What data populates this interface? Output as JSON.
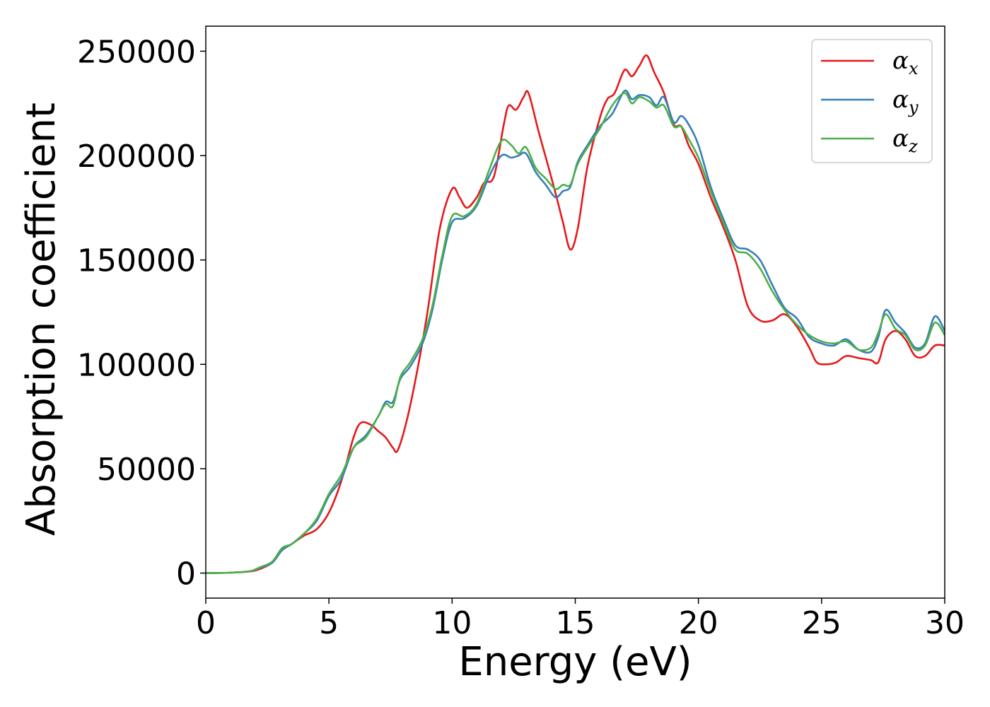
{
  "chart_data": {
    "type": "line",
    "title": "",
    "xlabel": "Energy (eV)",
    "ylabel": "Absorption coefficient",
    "xlim": [
      0,
      30
    ],
    "ylim": [
      -12000,
      262000
    ],
    "xticks": [
      0,
      5,
      10,
      15,
      20,
      25,
      30
    ],
    "xtick_labels": [
      "0",
      "5",
      "10",
      "15",
      "20",
      "25",
      "30"
    ],
    "yticks": [
      0,
      50000,
      100000,
      150000,
      200000,
      250000
    ],
    "ytick_labels": [
      "0",
      "50000",
      "100000",
      "150000",
      "200000",
      "250000"
    ],
    "grid": false,
    "legend_position": "top-right",
    "series": [
      {
        "name": "α",
        "subscript": "x",
        "color": "#e41a1c",
        "x": [
          0,
          1,
          1.8,
          2.2,
          2.7,
          3.1,
          3.5,
          4.0,
          4.5,
          5.0,
          5.5,
          6.0,
          6.3,
          6.7,
          7.0,
          7.3,
          7.6,
          7.8,
          8.2,
          8.6,
          9.0,
          9.5,
          10.0,
          10.3,
          10.6,
          11.0,
          11.3,
          11.7,
          12.1,
          12.3,
          12.6,
          12.9,
          13.1,
          13.5,
          13.9,
          14.2,
          14.5,
          14.8,
          15.1,
          15.5,
          16.0,
          16.3,
          16.6,
          17.0,
          17.3,
          17.6,
          17.9,
          18.2,
          18.6,
          19.0,
          19.3,
          19.6,
          20.0,
          20.5,
          21.0,
          21.5,
          22.0,
          22.5,
          23.0,
          23.5,
          24.0,
          24.5,
          24.8,
          25.2,
          25.6,
          26.0,
          26.5,
          27.0,
          27.3,
          27.6,
          28.0,
          28.4,
          28.8,
          29.2,
          29.6,
          30.0
        ],
        "y": [
          0,
          200,
          800,
          2000,
          5000,
          11000,
          14000,
          18000,
          21000,
          29000,
          44000,
          65000,
          72000,
          71000,
          68000,
          65000,
          60000,
          59000,
          75000,
          98000,
          125000,
          165000,
          184000,
          180000,
          175000,
          180000,
          187000,
          190000,
          215000,
          224000,
          222000,
          228000,
          230000,
          212000,
          195000,
          182000,
          168000,
          155000,
          165000,
          195000,
          218000,
          227000,
          230000,
          241000,
          238000,
          243000,
          248000,
          240000,
          230000,
          215000,
          214000,
          205000,
          196000,
          180000,
          166000,
          150000,
          128000,
          121000,
          121000,
          124000,
          118000,
          108000,
          101000,
          100000,
          101000,
          104000,
          103000,
          102000,
          101000,
          112000,
          116000,
          112000,
          104000,
          104000,
          109000,
          109000
        ]
      },
      {
        "name": "α",
        "subscript": "y",
        "color": "#377eb8",
        "x": [
          0,
          1,
          1.8,
          2.2,
          2.7,
          3.1,
          3.5,
          4.0,
          4.5,
          5.0,
          5.5,
          6.0,
          6.5,
          7.0,
          7.3,
          7.6,
          7.9,
          8.3,
          8.8,
          9.2,
          9.6,
          10.0,
          10.5,
          11.0,
          11.5,
          12.0,
          12.4,
          12.7,
          13.0,
          13.4,
          13.8,
          14.2,
          14.5,
          14.8,
          15.1,
          15.5,
          16.0,
          16.5,
          17.0,
          17.3,
          17.6,
          18.0,
          18.3,
          18.6,
          19.0,
          19.3,
          19.6,
          20.0,
          20.5,
          21.0,
          21.5,
          22.0,
          22.5,
          23.0,
          23.5,
          24.0,
          24.5,
          25.0,
          25.5,
          26.0,
          26.5,
          27.0,
          27.3,
          27.6,
          28.0,
          28.4,
          28.8,
          29.2,
          29.6,
          30.0
        ],
        "y": [
          0,
          200,
          900,
          2500,
          5000,
          11000,
          14000,
          19000,
          25000,
          37000,
          45000,
          60000,
          66000,
          75000,
          82000,
          82000,
          93000,
          99000,
          110000,
          126000,
          150000,
          168000,
          170000,
          176000,
          190000,
          200000,
          199000,
          200000,
          201000,
          192000,
          186000,
          180000,
          183000,
          185000,
          197000,
          205000,
          214000,
          220000,
          231000,
          227000,
          229000,
          228000,
          224000,
          228000,
          216000,
          219000,
          215000,
          205000,
          185000,
          170000,
          157000,
          155000,
          150000,
          138000,
          127000,
          122000,
          113000,
          110000,
          109000,
          112000,
          107000,
          106000,
          113000,
          126000,
          120000,
          115000,
          108000,
          110000,
          123000,
          116000
        ]
      },
      {
        "name": "α",
        "subscript": "z",
        "color": "#4daf4a",
        "x": [
          0,
          1,
          1.8,
          2.2,
          2.7,
          3.1,
          3.5,
          4.0,
          4.5,
          5.0,
          5.5,
          6.0,
          6.5,
          7.0,
          7.3,
          7.6,
          7.9,
          8.3,
          8.8,
          9.2,
          9.6,
          10.0,
          10.5,
          11.0,
          11.5,
          12.0,
          12.4,
          12.7,
          13.0,
          13.4,
          13.8,
          14.2,
          14.5,
          14.8,
          15.1,
          15.5,
          16.0,
          16.5,
          17.0,
          17.3,
          17.6,
          18.0,
          18.3,
          18.6,
          19.0,
          19.3,
          19.6,
          20.0,
          20.5,
          21.0,
          21.5,
          22.0,
          22.5,
          23.0,
          23.5,
          24.0,
          24.5,
          25.0,
          25.5,
          26.0,
          26.5,
          27.0,
          27.3,
          27.6,
          28.0,
          28.4,
          28.8,
          29.2,
          29.6,
          30.0
        ],
        "y": [
          0,
          200,
          900,
          2800,
          5500,
          12000,
          14000,
          19000,
          26000,
          38000,
          47000,
          60000,
          65000,
          75000,
          81000,
          80000,
          94000,
          101000,
          112000,
          128000,
          152000,
          171000,
          171000,
          177000,
          193000,
          207000,
          205000,
          201000,
          204000,
          194000,
          189000,
          184000,
          186000,
          186000,
          196000,
          204000,
          213000,
          224000,
          230000,
          225000,
          228000,
          226000,
          223000,
          224000,
          214000,
          214000,
          208000,
          199000,
          183000,
          168000,
          155000,
          153000,
          146000,
          135000,
          126000,
          119000,
          114000,
          111000,
          110000,
          111000,
          107000,
          108000,
          115000,
          124000,
          117000,
          114000,
          107000,
          109000,
          120000,
          114000
        ]
      }
    ]
  }
}
